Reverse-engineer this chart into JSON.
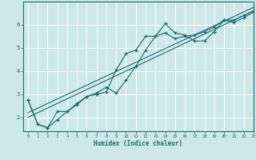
{
  "xlabel": "Humidex (Indice chaleur)",
  "bg_color": "#cce8e8",
  "line_color": "#1a6b6b",
  "grid_color": "#ffffff",
  "xlim": [
    -0.5,
    23
  ],
  "ylim": [
    1.4,
    7.0
  ],
  "yticks": [
    2,
    3,
    4,
    5,
    6
  ],
  "ytick_labels": [
    "2",
    "3",
    "4",
    "5",
    "6"
  ],
  "xticks": [
    0,
    1,
    2,
    3,
    4,
    5,
    6,
    7,
    8,
    9,
    10,
    11,
    12,
    13,
    14,
    15,
    16,
    17,
    18,
    19,
    20,
    21,
    22,
    23
  ],
  "series1_x": [
    0,
    1,
    2,
    3,
    4,
    5,
    6,
    7,
    8,
    9,
    10,
    11,
    12,
    13,
    14,
    15,
    16,
    17,
    18,
    19,
    20,
    21,
    22,
    23
  ],
  "series1_y": [
    2.75,
    1.7,
    1.55,
    1.9,
    2.25,
    2.6,
    2.9,
    3.0,
    3.1,
    4.05,
    4.75,
    4.9,
    5.5,
    5.5,
    6.05,
    5.65,
    5.55,
    5.3,
    5.3,
    5.7,
    6.2,
    6.1,
    6.3,
    6.55
  ],
  "series2_x": [
    0,
    1,
    2,
    3,
    4,
    5,
    6,
    7,
    8,
    9,
    10,
    11,
    12,
    13,
    14,
    15,
    16,
    17,
    18,
    19,
    20,
    21,
    22,
    23
  ],
  "series2_y": [
    2.75,
    1.7,
    1.55,
    2.25,
    2.25,
    2.55,
    2.9,
    3.05,
    3.3,
    3.05,
    3.6,
    4.2,
    4.9,
    5.5,
    5.65,
    5.4,
    5.5,
    5.55,
    5.7,
    5.9,
    6.2,
    6.2,
    6.4,
    6.6
  ],
  "series3_x": [
    0,
    23
  ],
  "series3_y": [
    2.0,
    6.6
  ],
  "series4_x": [
    0,
    23
  ],
  "series4_y": [
    2.2,
    6.75
  ]
}
